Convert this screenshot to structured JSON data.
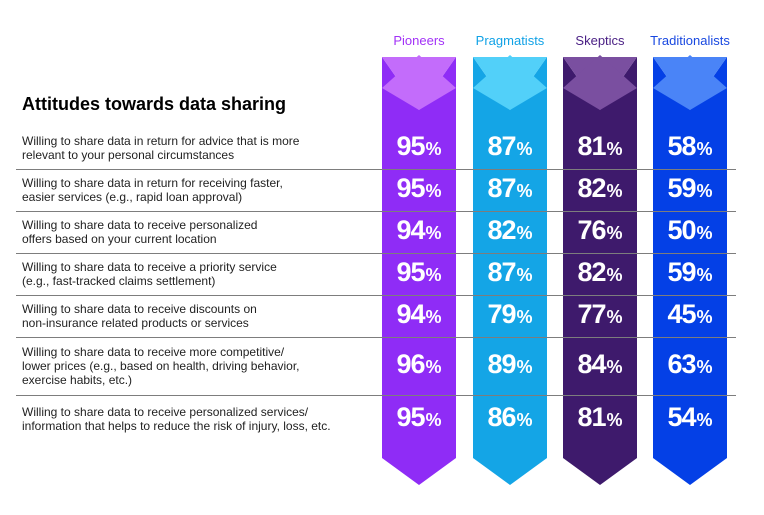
{
  "chart_data": {
    "type": "table",
    "title": "Attitudes towards data sharing",
    "segments": [
      {
        "name": "Pioneers",
        "color": "#8f2cf6",
        "header_color": "#a232f7",
        "cap_color": "#c36cfb"
      },
      {
        "name": "Pragmatists",
        "color": "#14a5e6",
        "header_color": "#11a2e6",
        "cap_color": "#52d0f9"
      },
      {
        "name": "Skeptics",
        "color": "#3e1a6c",
        "header_color": "#4b2185",
        "cap_color": "#7a4fa0"
      },
      {
        "name": "Traditionalists",
        "color": "#0440e6",
        "header_color": "#1848e0",
        "cap_color": "#4a84f7"
      }
    ],
    "rows": [
      {
        "label_lines": [
          "Willing to share data in return for advice that is more",
          "relevant to your personal circumstances"
        ],
        "values": [
          "95",
          "87",
          "81",
          "58"
        ]
      },
      {
        "label_lines": [
          "Willing to share data in return for receiving faster,",
          "easier services (e.g., rapid loan approval)"
        ],
        "values": [
          "95",
          "87",
          "82",
          "59"
        ]
      },
      {
        "label_lines": [
          "Willing to share data to receive personalized",
          "offers based on your current location"
        ],
        "values": [
          "94",
          "82",
          "76",
          "50"
        ]
      },
      {
        "label_lines": [
          "Willing to share data to receive a priority service",
          "(e.g., fast-tracked claims settlement)"
        ],
        "values": [
          "95",
          "87",
          "82",
          "59"
        ]
      },
      {
        "label_lines": [
          "Willing to share data to receive discounts on",
          "non-insurance related products or services"
        ],
        "values": [
          "94",
          "79",
          "77",
          "45"
        ]
      },
      {
        "label_lines": [
          "Willing to share data to receive more competitive/",
          "lower prices (e.g., based on health, driving behavior,",
          "exercise habits, etc.)"
        ],
        "values": [
          "96",
          "89",
          "84",
          "63"
        ]
      },
      {
        "label_lines": [
          "Willing to share data to receive personalized services/",
          "information that helps to reduce the risk of injury, loss, etc."
        ],
        "values": [
          "95",
          "86",
          "81",
          "54"
        ]
      }
    ],
    "unit_suffix": "%"
  }
}
